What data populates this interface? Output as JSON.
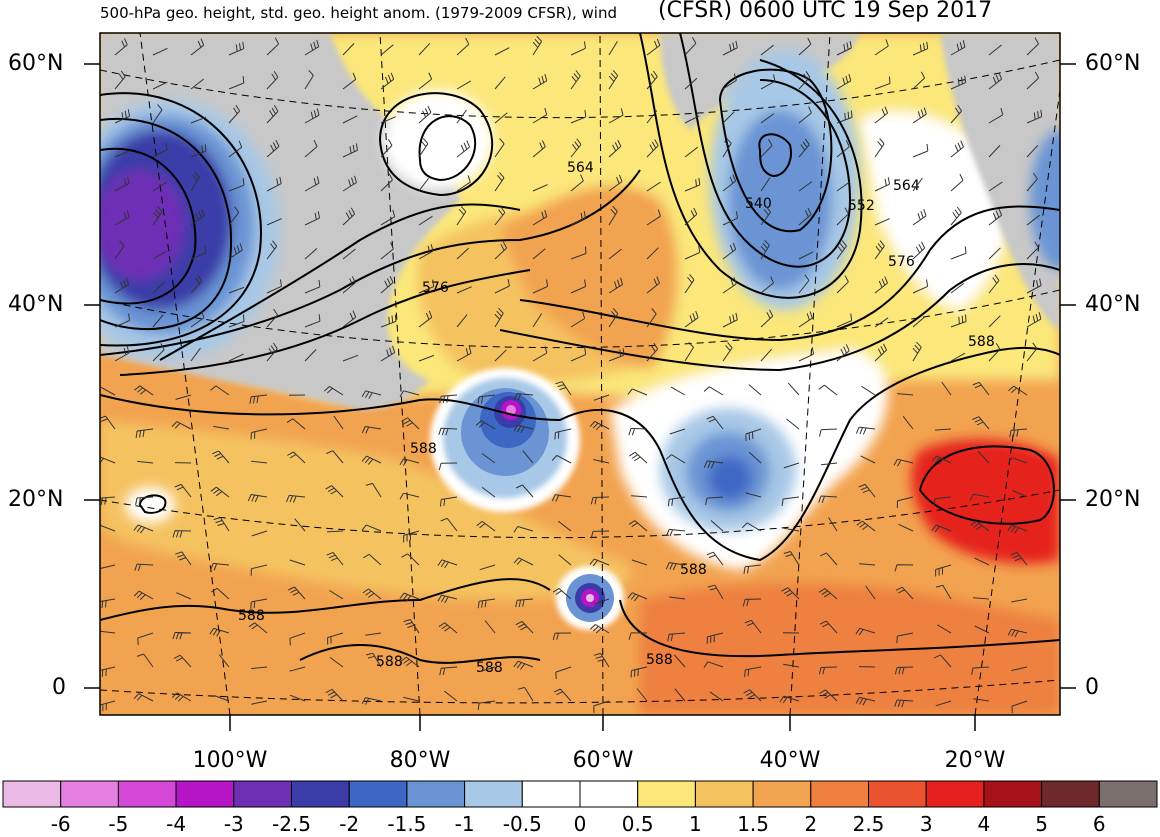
{
  "header": {
    "left_title": "500-hPa geo. height, std. geo. height anom. (1979-2009 CFSR), wind",
    "right_title": "(CFSR) 0600 UTC 19 Sep 2017"
  },
  "axes": {
    "lat_labels_left": [
      "60°N",
      "40°N",
      "20°N",
      "0"
    ],
    "lat_labels_right": [
      "60°N",
      "40°N",
      "20°N",
      "0"
    ],
    "lon_labels": [
      "100°W",
      "80°W",
      "60°W",
      "40°W",
      "20°W"
    ]
  },
  "contour_labels": [
    "564",
    "540",
    "552",
    "564",
    "576",
    "576",
    "588",
    "588",
    "588",
    "588",
    "588",
    "588"
  ],
  "colorbar": {
    "ticks": [
      "-6",
      "-5",
      "-4",
      "-3",
      "-2.5",
      "-2",
      "-1.5",
      "-1",
      "-0.5",
      "0",
      "0.5",
      "1",
      "1.5",
      "2",
      "2.5",
      "3",
      "4",
      "5",
      "6"
    ],
    "colors": [
      "#ebb9e6",
      "#e57fe2",
      "#d448d8",
      "#b514c7",
      "#6e2fb5",
      "#3b3ca8",
      "#3c68c4",
      "#6b94d4",
      "#a7c8e6",
      "#ffffff",
      "#ffffff",
      "#fbe77a",
      "#f5c260",
      "#f2a34f",
      "#ee8040",
      "#ea5230",
      "#e6201f",
      "#a5121a",
      "#6e2a2a",
      "#7a6f6d"
    ]
  }
}
